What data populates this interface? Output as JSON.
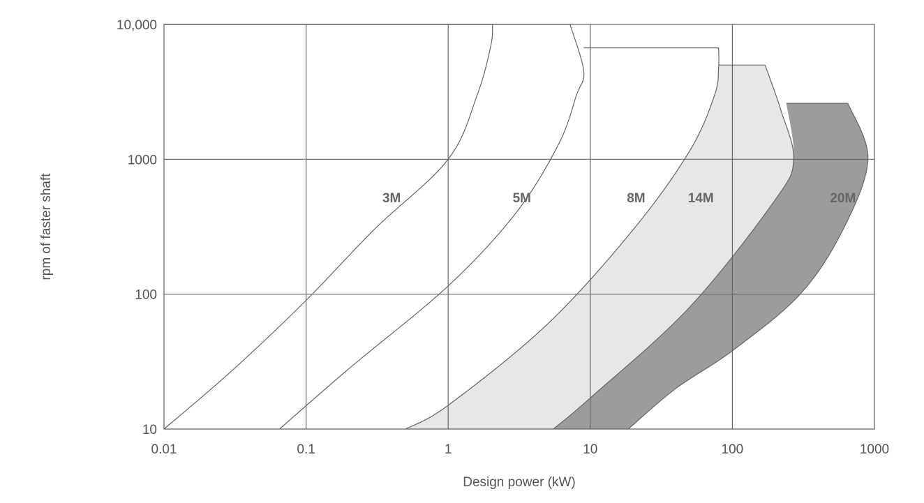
{
  "chart_data": {
    "type": "area",
    "xlabel": "Design power (kW)",
    "ylabel": "rpm of faster shaft",
    "x_scale": "log",
    "y_scale": "log",
    "xlim": [
      0.01,
      1000
    ],
    "ylim": [
      10,
      10000
    ],
    "grid": true,
    "x_ticks": [
      0.01,
      0.1,
      1,
      10,
      100,
      1000
    ],
    "x_tick_labels": [
      "0.01",
      "0.1",
      "1",
      "10",
      "100",
      "1000"
    ],
    "y_ticks": [
      10,
      100,
      1000,
      10000
    ],
    "y_tick_labels": [
      "10",
      "100",
      "1000",
      "10,000"
    ],
    "series": [
      {
        "name": "3M",
        "label_at": [
          0.4,
          520
        ],
        "fill": "none",
        "upper_boundary": [
          [
            0.01,
            10
          ],
          [
            0.03,
            27
          ],
          [
            0.1,
            90
          ],
          [
            0.3,
            300
          ],
          [
            1,
            1000
          ],
          [
            1.6,
            3000
          ],
          [
            2,
            7000
          ],
          [
            2.05,
            10000
          ]
        ],
        "top_rpm": 10000
      },
      {
        "name": "5M",
        "label_at": [
          3.3,
          520
        ],
        "fill": "none",
        "upper_boundary": [
          [
            0.065,
            10
          ],
          [
            0.2,
            28
          ],
          [
            1,
            115
          ],
          [
            3,
            400
          ],
          [
            6,
            1300
          ],
          [
            8,
            3000
          ],
          [
            9,
            4500
          ],
          [
            7.2,
            10000
          ]
        ],
        "top_rpm": 10000
      },
      {
        "name": "8M",
        "label_at": [
          21,
          520
        ],
        "fill": "#e7e7e7",
        "upper_boundary": [
          [
            0.5,
            10
          ],
          [
            1,
            15
          ],
          [
            5,
            60
          ],
          [
            20,
            300
          ],
          [
            50,
            1150
          ],
          [
            75,
            3000
          ],
          [
            80,
            4800
          ],
          [
            80,
            6700
          ]
        ],
        "top_rpm": 6700,
        "top_from": 9
      },
      {
        "name": "14M",
        "label_at": [
          60,
          520
        ],
        "fill": "#e7e7e7",
        "upper_boundary": [
          [
            5.5,
            10
          ],
          [
            10,
            17
          ],
          [
            50,
            80
          ],
          [
            200,
            500
          ],
          [
            270,
            1000
          ],
          [
            220,
            2300
          ],
          [
            170,
            5000
          ]
        ],
        "top_rpm": 5000,
        "top_from": 80
      },
      {
        "name": "20M",
        "label_at": [
          600,
          520
        ],
        "fill": "#9c9c9c",
        "lower_boundary": [
          [
            5.5,
            10
          ],
          [
            10,
            17
          ],
          [
            50,
            80
          ],
          [
            200,
            500
          ],
          [
            270,
            1000
          ],
          [
            240,
            2600
          ]
        ],
        "upper_boundary": [
          [
            18.5,
            10
          ],
          [
            40,
            20
          ],
          [
            100,
            38
          ],
          [
            300,
            100
          ],
          [
            600,
            300
          ],
          [
            900,
            1000
          ],
          [
            650,
            2600
          ]
        ],
        "top_rpm": 2600
      }
    ]
  }
}
